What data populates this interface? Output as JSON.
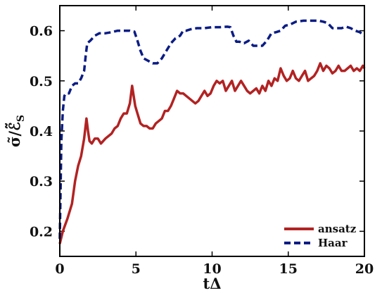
{
  "chart_data": {
    "type": "line",
    "title": "",
    "xlabel": "tΔ",
    "ylabel": "σ̃/ℰ̃",
    "ylabel_subscript": "S",
    "xlim": [
      0,
      20
    ],
    "ylim": [
      0.15,
      0.65
    ],
    "x_ticks": [
      "0",
      "5",
      "10",
      "15",
      "20"
    ],
    "y_ticks": [
      "0.2",
      "0.3",
      "0.4",
      "0.5",
      "0.6"
    ],
    "grid": false,
    "legend_position": "bottom-right",
    "series": [
      {
        "name": "ansatz",
        "color": "#b22222",
        "dash": "solid",
        "x": [
          0.0,
          0.2,
          0.5,
          0.8,
          1.0,
          1.2,
          1.4,
          1.6,
          1.75,
          1.85,
          1.95,
          2.1,
          2.3,
          2.5,
          2.7,
          3.0,
          3.2,
          3.4,
          3.6,
          3.8,
          4.0,
          4.2,
          4.4,
          4.6,
          4.75,
          4.85,
          4.95,
          5.1,
          5.3,
          5.5,
          5.7,
          5.9,
          6.1,
          6.3,
          6.5,
          6.7,
          6.9,
          7.1,
          7.3,
          7.5,
          7.7,
          7.9,
          8.1,
          8.3,
          8.5,
          8.7,
          8.9,
          9.1,
          9.3,
          9.5,
          9.7,
          9.9,
          10.1,
          10.3,
          10.5,
          10.7,
          10.9,
          11.1,
          11.3,
          11.5,
          11.7,
          11.9,
          12.1,
          12.3,
          12.5,
          12.7,
          12.9,
          13.1,
          13.3,
          13.5,
          13.7,
          13.9,
          14.1,
          14.3,
          14.5,
          14.7,
          14.9,
          15.1,
          15.3,
          15.5,
          15.7,
          15.9,
          16.1,
          16.3,
          16.5,
          16.7,
          16.9,
          17.1,
          17.3,
          17.5,
          17.7,
          17.9,
          18.1,
          18.3,
          18.5,
          18.7,
          18.9,
          19.1,
          19.3,
          19.5,
          19.7,
          19.9,
          20.0
        ],
        "y": [
          0.175,
          0.2,
          0.225,
          0.255,
          0.3,
          0.33,
          0.35,
          0.385,
          0.425,
          0.4,
          0.38,
          0.375,
          0.385,
          0.385,
          0.375,
          0.385,
          0.39,
          0.395,
          0.405,
          0.41,
          0.425,
          0.435,
          0.435,
          0.455,
          0.49,
          0.47,
          0.45,
          0.435,
          0.415,
          0.41,
          0.41,
          0.405,
          0.405,
          0.415,
          0.42,
          0.425,
          0.44,
          0.44,
          0.45,
          0.465,
          0.48,
          0.475,
          0.475,
          0.47,
          0.465,
          0.46,
          0.455,
          0.46,
          0.47,
          0.48,
          0.47,
          0.475,
          0.49,
          0.5,
          0.495,
          0.5,
          0.48,
          0.49,
          0.5,
          0.48,
          0.49,
          0.5,
          0.49,
          0.48,
          0.475,
          0.48,
          0.485,
          0.475,
          0.49,
          0.48,
          0.5,
          0.49,
          0.505,
          0.5,
          0.525,
          0.51,
          0.5,
          0.505,
          0.52,
          0.505,
          0.5,
          0.51,
          0.52,
          0.5,
          0.505,
          0.51,
          0.52,
          0.535,
          0.52,
          0.53,
          0.525,
          0.515,
          0.52,
          0.53,
          0.52,
          0.52,
          0.525,
          0.53,
          0.52,
          0.525,
          0.52,
          0.53,
          0.525
        ]
      },
      {
        "name": "Haar",
        "color": "#0a1c85",
        "dash": "dashed",
        "x": [
          0.0,
          0.1,
          0.2,
          0.3,
          0.4,
          0.6,
          0.8,
          1.0,
          1.2,
          1.4,
          1.6,
          1.7,
          1.8,
          2.0,
          2.3,
          2.6,
          3.0,
          3.4,
          3.8,
          4.2,
          4.6,
          4.9,
          5.1,
          5.3,
          5.5,
          5.8,
          6.1,
          6.4,
          6.7,
          7.0,
          7.3,
          7.6,
          7.9,
          8.1,
          8.3,
          8.6,
          9.0,
          9.5,
          10.0,
          10.5,
          11.0,
          11.2,
          11.4,
          11.6,
          11.8,
          12.1,
          12.4,
          12.7,
          13.0,
          13.3,
          13.6,
          13.9,
          14.2,
          14.5,
          14.8,
          15.1,
          15.5,
          16.0,
          16.5,
          17.0,
          17.3,
          17.6,
          17.9,
          18.2,
          18.5,
          18.8,
          19.1,
          19.4,
          19.7,
          20.0
        ],
        "y": [
          0.185,
          0.38,
          0.44,
          0.47,
          0.475,
          0.475,
          0.49,
          0.495,
          0.495,
          0.505,
          0.52,
          0.55,
          0.575,
          0.58,
          0.59,
          0.595,
          0.595,
          0.597,
          0.6,
          0.6,
          0.6,
          0.598,
          0.58,
          0.56,
          0.545,
          0.54,
          0.535,
          0.535,
          0.545,
          0.56,
          0.575,
          0.585,
          0.59,
          0.6,
          0.6,
          0.603,
          0.605,
          0.605,
          0.607,
          0.607,
          0.608,
          0.607,
          0.59,
          0.578,
          0.578,
          0.575,
          0.58,
          0.57,
          0.57,
          0.57,
          0.58,
          0.595,
          0.597,
          0.6,
          0.61,
          0.612,
          0.618,
          0.62,
          0.62,
          0.62,
          0.618,
          0.615,
          0.605,
          0.605,
          0.605,
          0.608,
          0.605,
          0.6,
          0.597,
          0.59
        ]
      }
    ]
  }
}
